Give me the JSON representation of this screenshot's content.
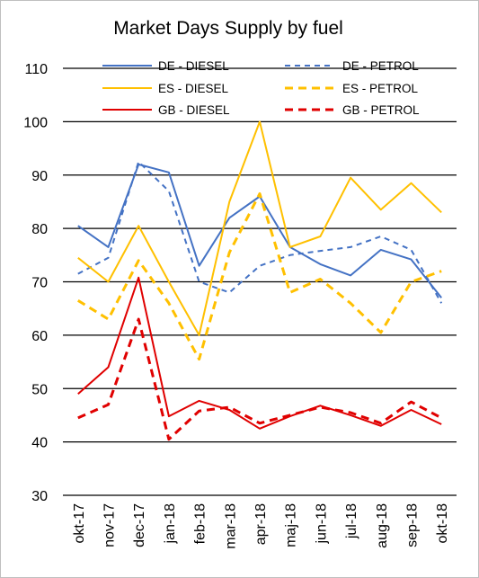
{
  "chart_data": {
    "type": "line",
    "title": "Market Days Supply by fuel",
    "xlabel": "",
    "ylabel": "",
    "categories": [
      "okt-17",
      "nov-17",
      "dec-17",
      "jan-18",
      "feb-18",
      "mar-18",
      "apr-18",
      "maj-18",
      "jun-18",
      "jul-18",
      "aug-18",
      "sep-18",
      "okt-18"
    ],
    "ylim": [
      30,
      110
    ],
    "yticks": [
      30,
      40,
      50,
      60,
      70,
      80,
      90,
      100,
      110
    ],
    "grid": true,
    "legend_position": "top",
    "series": [
      {
        "name": "DE - DIESEL",
        "color": "#4472c4",
        "style": "solid",
        "width": 2,
        "values": [
          80.5,
          76.5,
          92,
          90.5,
          73,
          82,
          86,
          76.5,
          73.3,
          71.2,
          76,
          74.2,
          67
        ]
      },
      {
        "name": "DE - PETROL",
        "color": "#4472c4",
        "style": "dashed",
        "width": 2,
        "values": [
          71.5,
          74.5,
          92.5,
          87,
          70,
          68,
          73,
          75,
          75.8,
          76.5,
          78.5,
          76,
          66
        ]
      },
      {
        "name": "ES - DIESEL",
        "color": "#ffc000",
        "style": "solid",
        "width": 2,
        "values": [
          74.5,
          70,
          80.5,
          70,
          60,
          85,
          100,
          76.5,
          78.5,
          89.5,
          83.5,
          88.5,
          83
        ]
      },
      {
        "name": "ES - PETROL",
        "color": "#ffc000",
        "style": "dashed",
        "width": 3,
        "values": [
          66.5,
          63,
          74,
          66,
          55.5,
          75.5,
          86.5,
          68,
          70.5,
          66,
          60.5,
          70,
          72
        ]
      },
      {
        "name": "GB - DIESEL",
        "color": "#e00000",
        "style": "solid",
        "width": 2,
        "values": [
          49,
          54,
          70.8,
          44.8,
          47.7,
          46,
          42.5,
          44.8,
          46.8,
          45,
          43,
          46,
          43.3
        ]
      },
      {
        "name": "GB - PETROL",
        "color": "#e00000",
        "style": "dashed",
        "width": 3,
        "values": [
          44.5,
          47,
          63,
          40.5,
          45.8,
          46.5,
          43.5,
          45,
          46.5,
          45.5,
          43.5,
          47.5,
          44.5
        ]
      }
    ]
  }
}
